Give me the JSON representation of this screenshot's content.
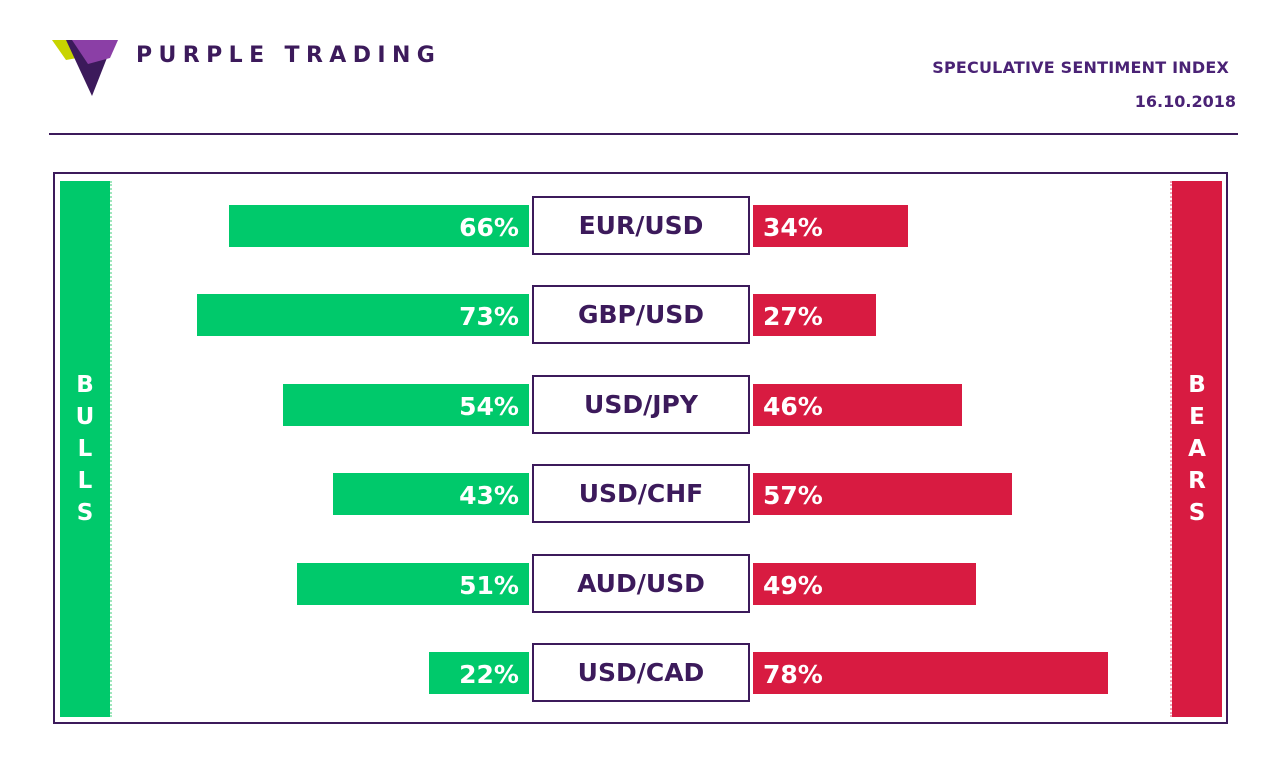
{
  "brand": {
    "name": "PURPLE TRADING",
    "logo_mark": "purple-triangle-logo-icon",
    "colors": {
      "purple": "#3c1a5b",
      "purple_light": "#8b3fa6",
      "lime": "#c8d400"
    }
  },
  "header": {
    "title": "SPECULATIVE SENTIMENT INDEX",
    "date": "16.10.2018"
  },
  "sides": {
    "bulls": "BULLS",
    "bears": "BEARS"
  },
  "colors": {
    "bulls": "#00c96b",
    "bears": "#d81b41",
    "frame": "#3c1a5b"
  },
  "chart_data": {
    "type": "bar",
    "orientation": "horizontal-diverging",
    "categories": [
      "EUR/USD",
      "GBP/USD",
      "USD/JPY",
      "USD/CHF",
      "AUD/USD",
      "USD/CAD"
    ],
    "series": [
      {
        "name": "BULLS",
        "values": [
          66,
          73,
          54,
          43,
          51,
          22
        ],
        "labels": [
          "66%",
          "73%",
          "54%",
          "43%",
          "51%",
          "22%"
        ]
      },
      {
        "name": "BEARS",
        "values": [
          34,
          27,
          46,
          57,
          49,
          78
        ],
        "labels": [
          "34%",
          "27%",
          "46%",
          "57%",
          "49%",
          "78%"
        ]
      }
    ],
    "unit": "%",
    "grid": false
  }
}
